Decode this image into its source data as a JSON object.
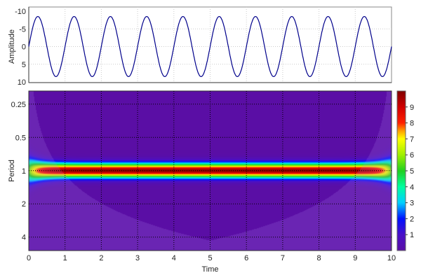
{
  "chart_data": [
    {
      "type": "line",
      "ylabel": "Amplitude",
      "xlim": [
        0,
        10
      ],
      "ylim": [
        -10,
        10
      ],
      "y_axis_reversed": true,
      "yticks": [
        "-10",
        "-5",
        "0",
        "5",
        "10"
      ],
      "grid": true,
      "series": [
        {
          "function": "sine",
          "amplitude": 8.5,
          "period": 1.0,
          "phase_sign": -1,
          "color": "#00008b"
        }
      ]
    },
    {
      "type": "heatmap",
      "xlabel": "Time",
      "ylabel": "Period",
      "xlim": [
        0,
        10
      ],
      "ylim": [
        0.19,
        5.3
      ],
      "y_scale": "log2",
      "xticks": [
        "0",
        "1",
        "2",
        "3",
        "4",
        "5",
        "6",
        "7",
        "8",
        "9",
        "10"
      ],
      "yticks": [
        "0.25",
        "0.5",
        "1",
        "2",
        "4"
      ],
      "grid": true,
      "dominant_period": 1.0,
      "max_power": 9.8,
      "cone_of_influence_max_period": 4.3,
      "colorbar": {
        "range": [
          0,
          10
        ],
        "ticks": [
          "1",
          "2",
          "3",
          "4",
          "5",
          "6",
          "7",
          "8",
          "9"
        ],
        "colormap": "jet-purple"
      }
    }
  ]
}
